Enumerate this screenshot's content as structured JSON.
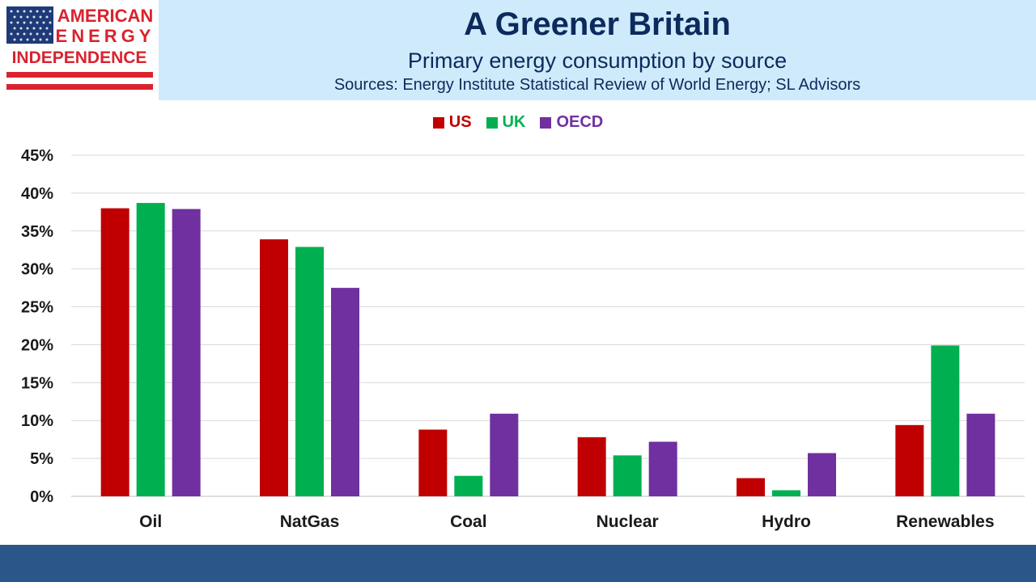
{
  "header": {
    "logo_lines": [
      "AMERICAN",
      "ENERGY",
      "INDEPENDENCE"
    ],
    "title": "A Greener Britain",
    "subtitle": "Primary energy consumption by source",
    "sources": "Sources: Energy Institute Statistical Review of World Energy; SL Advisors"
  },
  "colors": {
    "US": "#c00000",
    "UK": "#00b050",
    "OECD": "#7030a0",
    "header_band": "#cfeafb",
    "title_text": "#0c2a5c",
    "footer": "#2a5689"
  },
  "chart_data": {
    "type": "bar",
    "categories": [
      "Oil",
      "NatGas",
      "Coal",
      "Nuclear",
      "Hydro",
      "Renewables"
    ],
    "series": [
      {
        "name": "US",
        "values": [
          38.0,
          33.9,
          8.8,
          7.8,
          2.4,
          9.4
        ]
      },
      {
        "name": "UK",
        "values": [
          38.7,
          32.9,
          2.7,
          5.4,
          0.8,
          19.9
        ]
      },
      {
        "name": "OECD",
        "values": [
          37.9,
          27.5,
          10.9,
          7.2,
          5.7,
          10.9
        ]
      }
    ],
    "ylim": [
      0,
      45
    ],
    "yticks": [
      0,
      5,
      10,
      15,
      20,
      25,
      30,
      35,
      40,
      45
    ],
    "ytick_format": "percent",
    "grid": true,
    "legend_position": "top-center"
  }
}
